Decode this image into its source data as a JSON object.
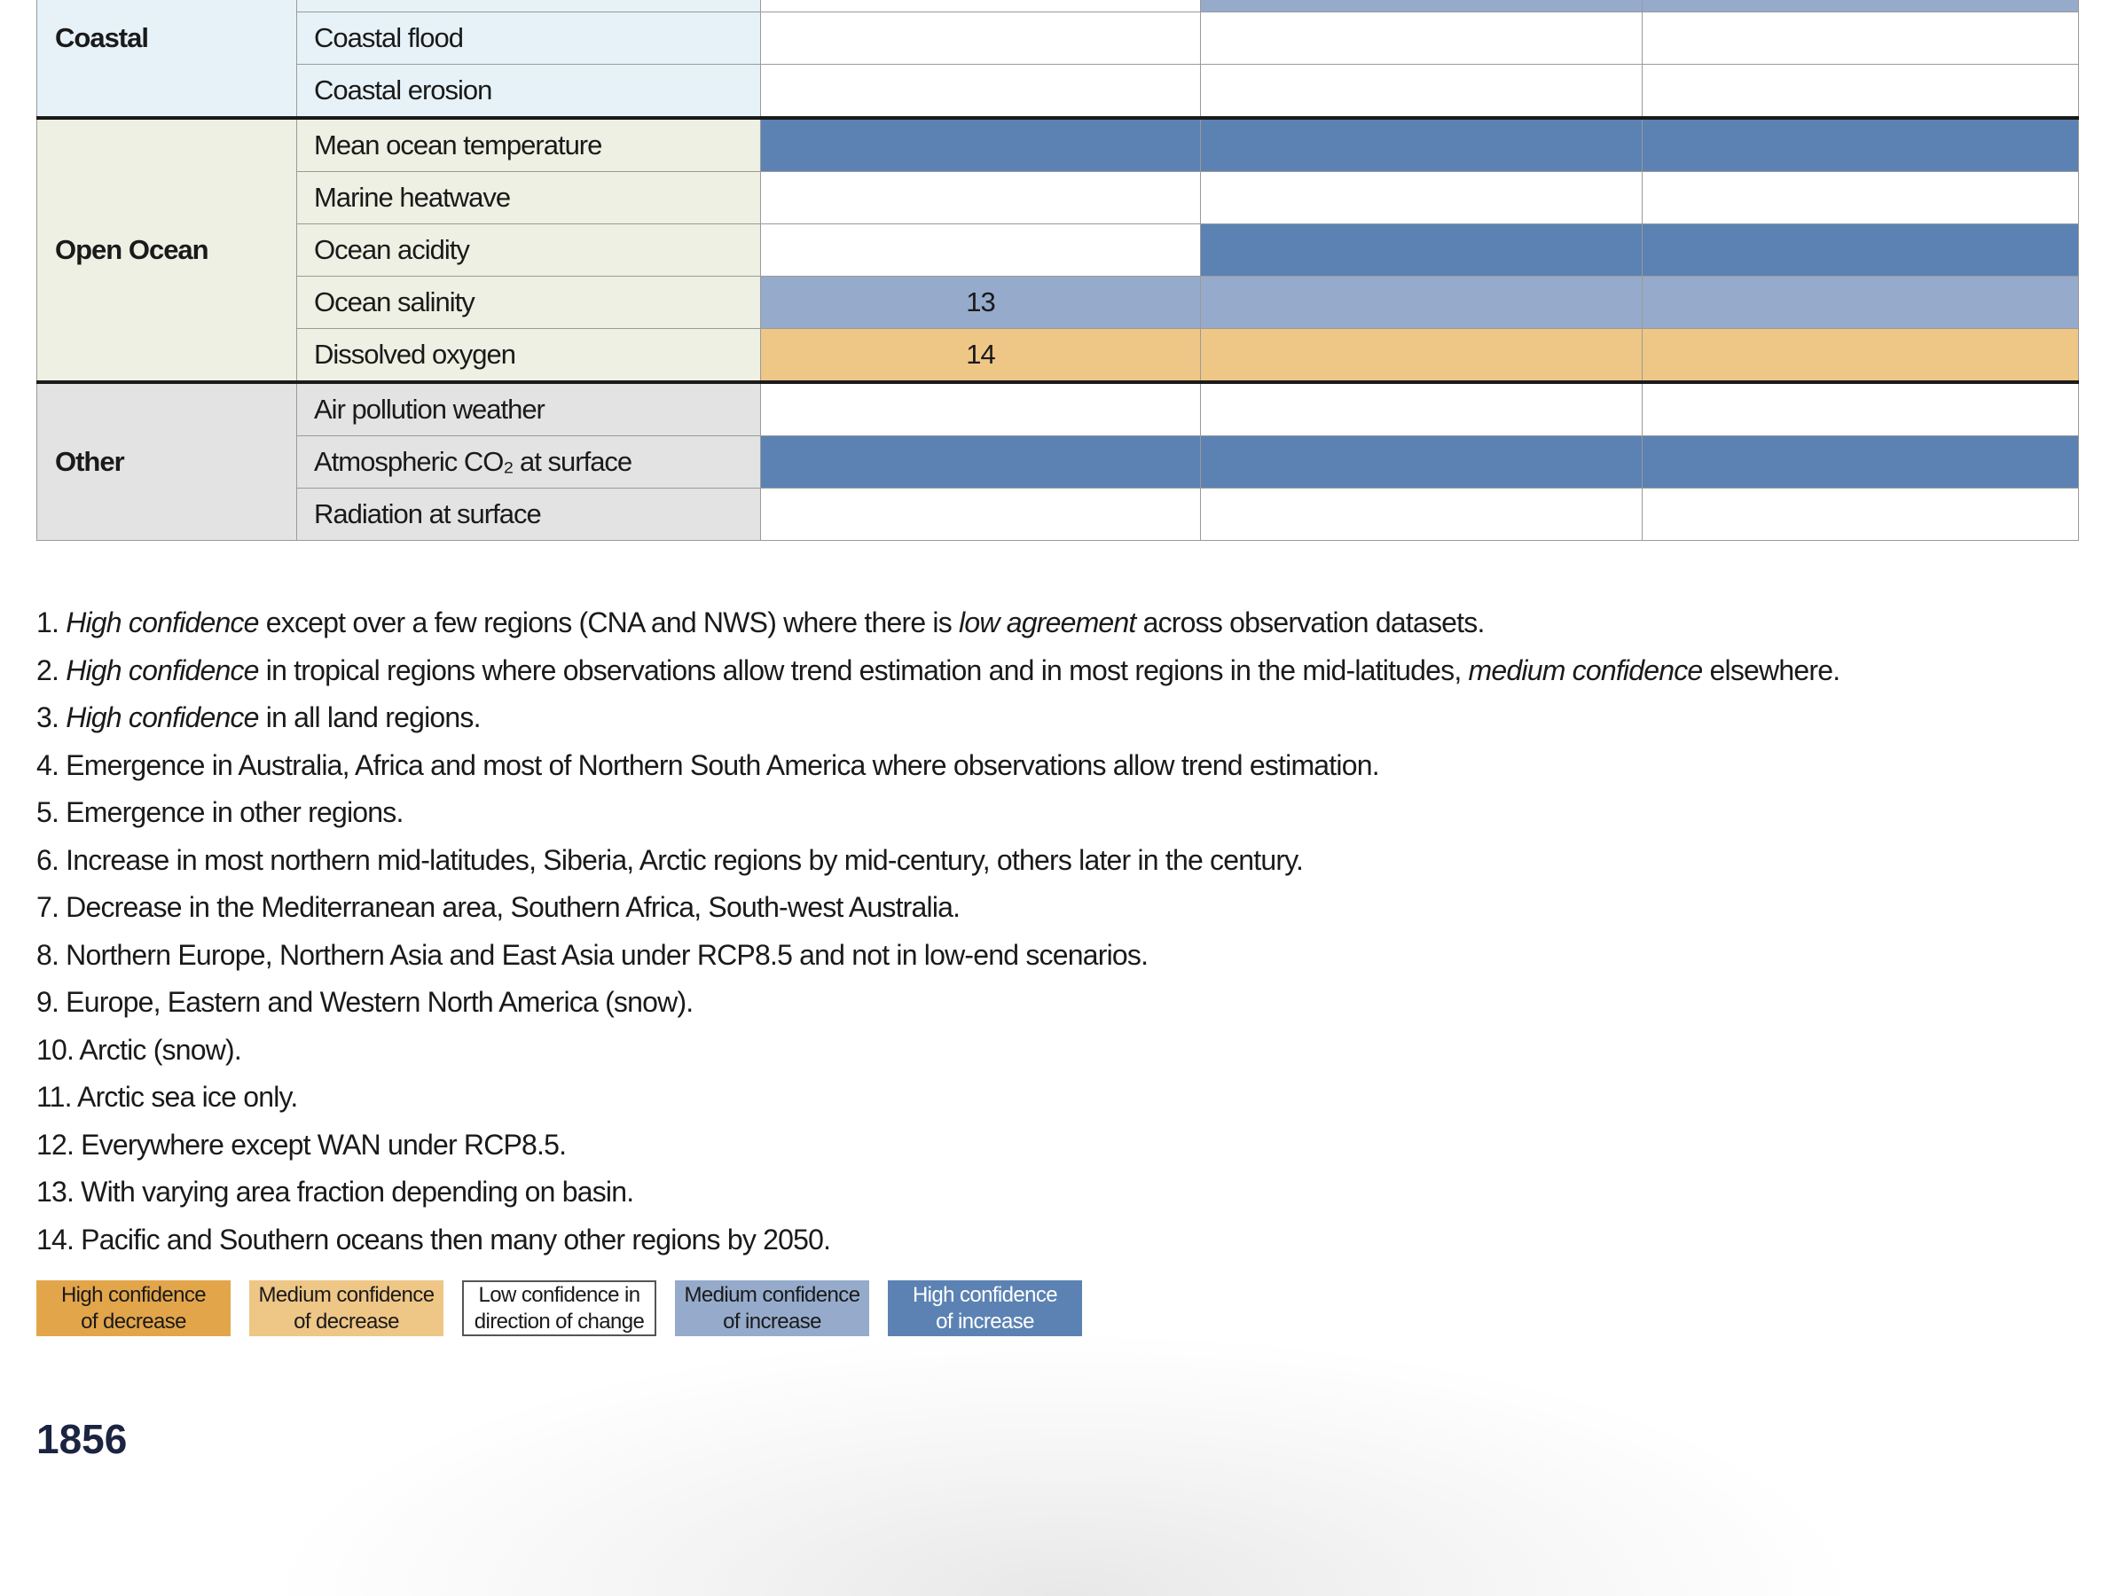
{
  "colors": {
    "high_dec": "#e3a54a",
    "med_dec": "#eec686",
    "low": "#ffffff",
    "med_inc": "#96abcb",
    "high_inc": "#5b82b3",
    "coastal_bg": "#e6f2f7",
    "ocean_bg": "#edf0e2",
    "other_bg": "#e3e3e3"
  },
  "table": {
    "groups": [
      {
        "label": "Coastal",
        "bg": "coastal_bg",
        "rows": [
          {
            "name": "",
            "cells": [
              {
                "c": "low",
                "t": ""
              },
              {
                "c": "med_inc",
                "t": ""
              },
              {
                "c": "med_inc",
                "t": ""
              }
            ]
          },
          {
            "name": "Coastal flood",
            "cells": [
              {
                "c": "low",
                "t": ""
              },
              {
                "c": "low",
                "t": ""
              },
              {
                "c": "low",
                "t": ""
              }
            ]
          },
          {
            "name": "Coastal erosion",
            "cells": [
              {
                "c": "low",
                "t": ""
              },
              {
                "c": "low",
                "t": ""
              },
              {
                "c": "low",
                "t": ""
              }
            ]
          }
        ]
      },
      {
        "label": "Open Ocean",
        "bg": "ocean_bg",
        "rows": [
          {
            "name": "Mean ocean temperature",
            "cells": [
              {
                "c": "high_inc",
                "t": ""
              },
              {
                "c": "high_inc",
                "t": ""
              },
              {
                "c": "high_inc",
                "t": ""
              }
            ]
          },
          {
            "name": "Marine heatwave",
            "cells": [
              {
                "c": "low",
                "t": ""
              },
              {
                "c": "low",
                "t": ""
              },
              {
                "c": "low",
                "t": ""
              }
            ]
          },
          {
            "name": "Ocean acidity",
            "cells": [
              {
                "c": "low",
                "t": ""
              },
              {
                "c": "high_inc",
                "t": ""
              },
              {
                "c": "high_inc",
                "t": ""
              }
            ]
          },
          {
            "name": "Ocean salinity",
            "cells": [
              {
                "c": "med_inc",
                "t": "13"
              },
              {
                "c": "med_inc",
                "t": ""
              },
              {
                "c": "med_inc",
                "t": ""
              }
            ]
          },
          {
            "name": "Dissolved oxygen",
            "cells": [
              {
                "c": "med_dec",
                "t": "14"
              },
              {
                "c": "med_dec",
                "t": ""
              },
              {
                "c": "med_dec",
                "t": ""
              }
            ]
          }
        ]
      },
      {
        "label": "Other",
        "bg": "other_bg",
        "rows": [
          {
            "name": "Air pollution weather",
            "cells": [
              {
                "c": "low",
                "t": ""
              },
              {
                "c": "low",
                "t": ""
              },
              {
                "c": "low",
                "t": ""
              }
            ]
          },
          {
            "name": "Atmospheric CO₂ at surface",
            "cells": [
              {
                "c": "high_inc",
                "t": ""
              },
              {
                "c": "high_inc",
                "t": ""
              },
              {
                "c": "high_inc",
                "t": ""
              }
            ]
          },
          {
            "name": "Radiation at surface",
            "cells": [
              {
                "c": "low",
                "t": ""
              },
              {
                "c": "low",
                "t": ""
              },
              {
                "c": "low",
                "t": ""
              }
            ]
          }
        ]
      }
    ]
  },
  "footnotes": [
    [
      {
        "t": "1. "
      },
      {
        "t": "High confidence",
        "i": true
      },
      {
        "t": " except over a few regions (CNA and NWS) where there is "
      },
      {
        "t": "low agreement",
        "i": true
      },
      {
        "t": " across observation datasets."
      }
    ],
    [
      {
        "t": "2. "
      },
      {
        "t": "High confidence",
        "i": true
      },
      {
        "t": " in tropical regions where observations allow trend estimation and in most regions in the mid-latitudes, "
      },
      {
        "t": "medium confidence",
        "i": true
      },
      {
        "t": " elsewhere."
      }
    ],
    [
      {
        "t": "3. "
      },
      {
        "t": "High confidence",
        "i": true
      },
      {
        "t": " in all land regions."
      }
    ],
    [
      {
        "t": "4. Emergence in Australia, Africa and most of Northern South America where observations allow trend estimation."
      }
    ],
    [
      {
        "t": "5. Emergence in other regions."
      }
    ],
    [
      {
        "t": "6. Increase in most northern mid-latitudes, Siberia, Arctic regions by mid-century, others later in the century."
      }
    ],
    [
      {
        "t": "7. Decrease in the Mediterranean area, Southern Africa, South-west Australia."
      }
    ],
    [
      {
        "t": "8. Northern Europe, Northern Asia and East Asia under RCP8.5 and not in low-end scenarios."
      }
    ],
    [
      {
        "t": "9. Europe, Eastern and Western North America (snow)."
      }
    ],
    [
      {
        "t": "10. Arctic (snow)."
      }
    ],
    [
      {
        "t": "11. Arctic sea ice only."
      }
    ],
    [
      {
        "t": "12. Everywhere except WAN under RCP8.5."
      }
    ],
    [
      {
        "t": "13. With varying area fraction depending on basin."
      }
    ],
    [
      {
        "t": "14. Pacific and Southern oceans then many other regions by 2050."
      }
    ]
  ],
  "legend": [
    {
      "key": "high_dec",
      "line1": "High confidence",
      "line2": "of decrease",
      "text_color": "#1a1a1a"
    },
    {
      "key": "med_dec",
      "line1": "Medium confidence",
      "line2": "of decrease",
      "text_color": "#1a1a1a"
    },
    {
      "key": "low",
      "line1": "Low confidence in",
      "line2": "direction of change",
      "text_color": "#1a1a1a"
    },
    {
      "key": "med_inc",
      "line1": "Medium confidence",
      "line2": "of increase",
      "text_color": "#1a1a1a"
    },
    {
      "key": "high_inc",
      "line1": "High confidence",
      "line2": "of increase",
      "text_color": "#ffffff"
    }
  ],
  "page_number": "1856"
}
